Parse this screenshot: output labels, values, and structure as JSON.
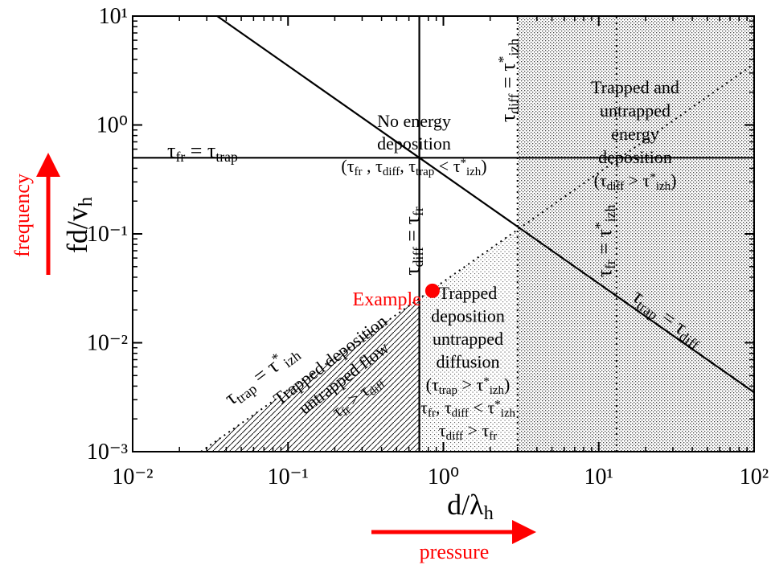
{
  "chart_data": {
    "type": "regime-map",
    "log_x": true,
    "log_y": true,
    "xlim": [
      0.01,
      100
    ],
    "ylim": [
      0.001,
      10
    ],
    "xticks": [
      {
        "value": 0.01,
        "label": "10⁻²"
      },
      {
        "value": 0.1,
        "label": "10⁻¹"
      },
      {
        "value": 1,
        "label": "10⁰"
      },
      {
        "value": 10,
        "label": "10¹"
      },
      {
        "value": 100,
        "label": "10²"
      }
    ],
    "yticks": [
      {
        "value": 0.001,
        "label": "10⁻³"
      },
      {
        "value": 0.01,
        "label": "10⁻²"
      },
      {
        "value": 0.1,
        "label": "10⁻¹"
      },
      {
        "value": 1,
        "label": "10⁰"
      },
      {
        "value": 10,
        "label": "10¹"
      }
    ],
    "xlabel": [
      "d/λ",
      {
        "sub": "h"
      }
    ],
    "ylabel": [
      "fd/v",
      {
        "sub": "h"
      }
    ],
    "lines": [
      {
        "style": "solid",
        "x": [
          0.01,
          100
        ],
        "y": [
          0.5,
          0.5
        ],
        "label": [
          "τ",
          {
            "sub": "fr"
          },
          " = τ",
          {
            "sub": "trap"
          }
        ]
      },
      {
        "style": "solid",
        "x": [
          0.7,
          0.7
        ],
        "y": [
          0.001,
          10
        ],
        "label": [
          "τ",
          {
            "sub": "diff"
          },
          " = τ",
          {
            "sub": "fr"
          }
        ]
      },
      {
        "style": "dotted",
        "x": [
          3,
          3
        ],
        "y": [
          0.001,
          10
        ],
        "label": [
          "τ",
          {
            "sub": "diff"
          },
          " = τ",
          {
            "sup": "*"
          },
          {
            "sub": "izh"
          }
        ]
      },
      {
        "style": "dotted",
        "x": [
          13,
          13
        ],
        "y": [
          0.001,
          10
        ],
        "label": [
          "τ",
          {
            "sub": "fr"
          },
          " = τ",
          {
            "sup": "*"
          },
          {
            "sub": "izh"
          }
        ]
      },
      {
        "style": "solid",
        "x": [
          0.035,
          100
        ],
        "y": [
          10,
          0.0035
        ],
        "label": [
          "τ",
          {
            "sub": "trap"
          },
          " = τ",
          {
            "sub": "diff"
          }
        ]
      },
      {
        "style": "dotted",
        "x": [
          0.0275,
          100
        ],
        "y": [
          0.001,
          3.64
        ],
        "label": [
          "τ",
          {
            "sub": "trap"
          },
          " = τ",
          {
            "sup": "*"
          },
          {
            "sub": "izh"
          }
        ]
      }
    ],
    "regions": [
      {
        "fill": "dense-dots",
        "x": [
          3,
          100,
          100,
          3
        ],
        "y": [
          0.001,
          0.001,
          10,
          10
        ],
        "label": [
          [
            "Trapped and"
          ],
          [
            "untrapped"
          ],
          [
            "energy"
          ],
          [
            "deposition"
          ],
          [
            "(τ",
            {
              "sub": "diff"
            },
            " > τ",
            {
              "sup": "*"
            },
            {
              "sub": "izh"
            },
            ")"
          ]
        ]
      },
      {
        "fill": "sparse-dots",
        "x": [
          0.7,
          3,
          3,
          0.7
        ],
        "y": [
          0.001,
          0.001,
          0.109,
          0.0255
        ],
        "label": [
          [
            "Trapped"
          ],
          [
            "deposition"
          ],
          [
            "untrapped"
          ],
          [
            "diffusion"
          ],
          [
            "(τ",
            {
              "sub": "trap"
            },
            " > τ",
            {
              "sup": "*"
            },
            {
              "sub": "izh"
            },
            ")"
          ],
          [
            "τ",
            {
              "sub": "fr"
            },
            ", τ",
            {
              "sub": "diff"
            },
            " < τ",
            {
              "sup": "*"
            },
            {
              "sub": "izh"
            }
          ],
          [
            "τ",
            {
              "sub": "diff"
            },
            " > τ",
            {
              "sub": "fr"
            }
          ]
        ]
      },
      {
        "fill": "hatch",
        "x": [
          0.0275,
          0.7,
          0.7
        ],
        "y": [
          0.001,
          0.001,
          0.0255
        ],
        "label": [
          [
            "Trapped deposition"
          ],
          [
            "untrapped flow"
          ],
          [
            "τ",
            {
              "sub": "fr"
            },
            " > τ",
            {
              "sub": "diff"
            }
          ]
        ]
      },
      {
        "fill": "none",
        "x": [],
        "y": [],
        "label": [
          [
            "No energy"
          ],
          [
            "deposition"
          ],
          [
            "(τ",
            {
              "sub": "fr"
            },
            " , τ",
            {
              "sub": "diff"
            },
            ", τ",
            {
              "sub": "trap"
            },
            " < τ",
            {
              "sup": "*"
            },
            {
              "sub": "izh"
            },
            ")"
          ]
        ]
      }
    ],
    "point": {
      "label": "Example",
      "x": 0.85,
      "y": 0.03,
      "color": "#ff0000"
    },
    "arrows": {
      "y_label": "frequency",
      "x_label": "pressure",
      "color": "#ff0000"
    }
  }
}
